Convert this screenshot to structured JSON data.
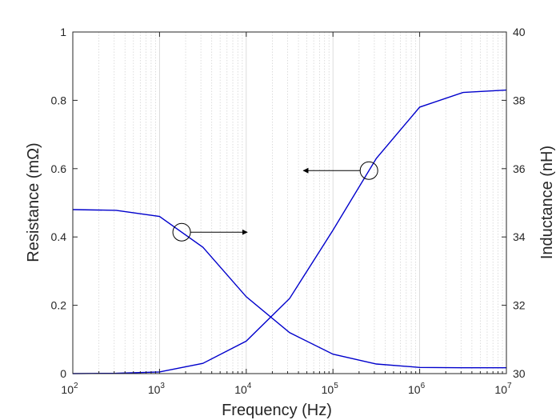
{
  "chart_data": {
    "type": "line",
    "xlabel": "Frequency (Hz)",
    "ylabel_left": "Resistance (mΩ)",
    "ylabel_right": "Inductance (nH)",
    "x_scale": "log",
    "xlim": [
      100,
      10000000
    ],
    "ylim_left": [
      0,
      1
    ],
    "ylim_right": [
      30,
      40
    ],
    "grid": "log x minor lines",
    "x_ticks": [
      {
        "value": 100,
        "base": "10",
        "exp": "2"
      },
      {
        "value": 1000,
        "base": "10",
        "exp": "3"
      },
      {
        "value": 10000,
        "base": "10",
        "exp": "4"
      },
      {
        "value": 100000,
        "base": "10",
        "exp": "5"
      },
      {
        "value": 1000000,
        "base": "10",
        "exp": "6"
      },
      {
        "value": 10000000,
        "base": "10",
        "exp": "7"
      }
    ],
    "y_ticks_left": [
      "0",
      "0.2",
      "0.4",
      "0.6",
      "0.8",
      "1"
    ],
    "y_ticks_right": [
      "30",
      "32",
      "34",
      "36",
      "38",
      "40"
    ],
    "series": [
      {
        "axis": "left",
        "color": "#0000cc",
        "x": [
          100,
          316,
          1000,
          3162,
          10000,
          31623,
          100000,
          316228,
          1000000,
          3162278,
          10000000
        ],
        "y": [
          0.0,
          0.001,
          0.005,
          0.03,
          0.095,
          0.22,
          0.42,
          0.63,
          0.78,
          0.823,
          0.83
        ]
      },
      {
        "axis": "right",
        "color": "#0000cc",
        "x": [
          100,
          316,
          1000,
          3162,
          10000,
          31623,
          100000,
          316228,
          1000000,
          3162278,
          10000000
        ],
        "y": [
          34.8,
          34.78,
          34.6,
          33.7,
          32.25,
          31.2,
          30.57,
          30.28,
          30.18,
          30.17,
          30.17
        ]
      }
    ],
    "annotations": [
      {
        "marker": "circle",
        "series": 1,
        "at_x": 1800,
        "arrow": "right-axis"
      },
      {
        "marker": "circle",
        "series": 0,
        "at_x": 260000,
        "arrow": "left-axis"
      }
    ]
  }
}
